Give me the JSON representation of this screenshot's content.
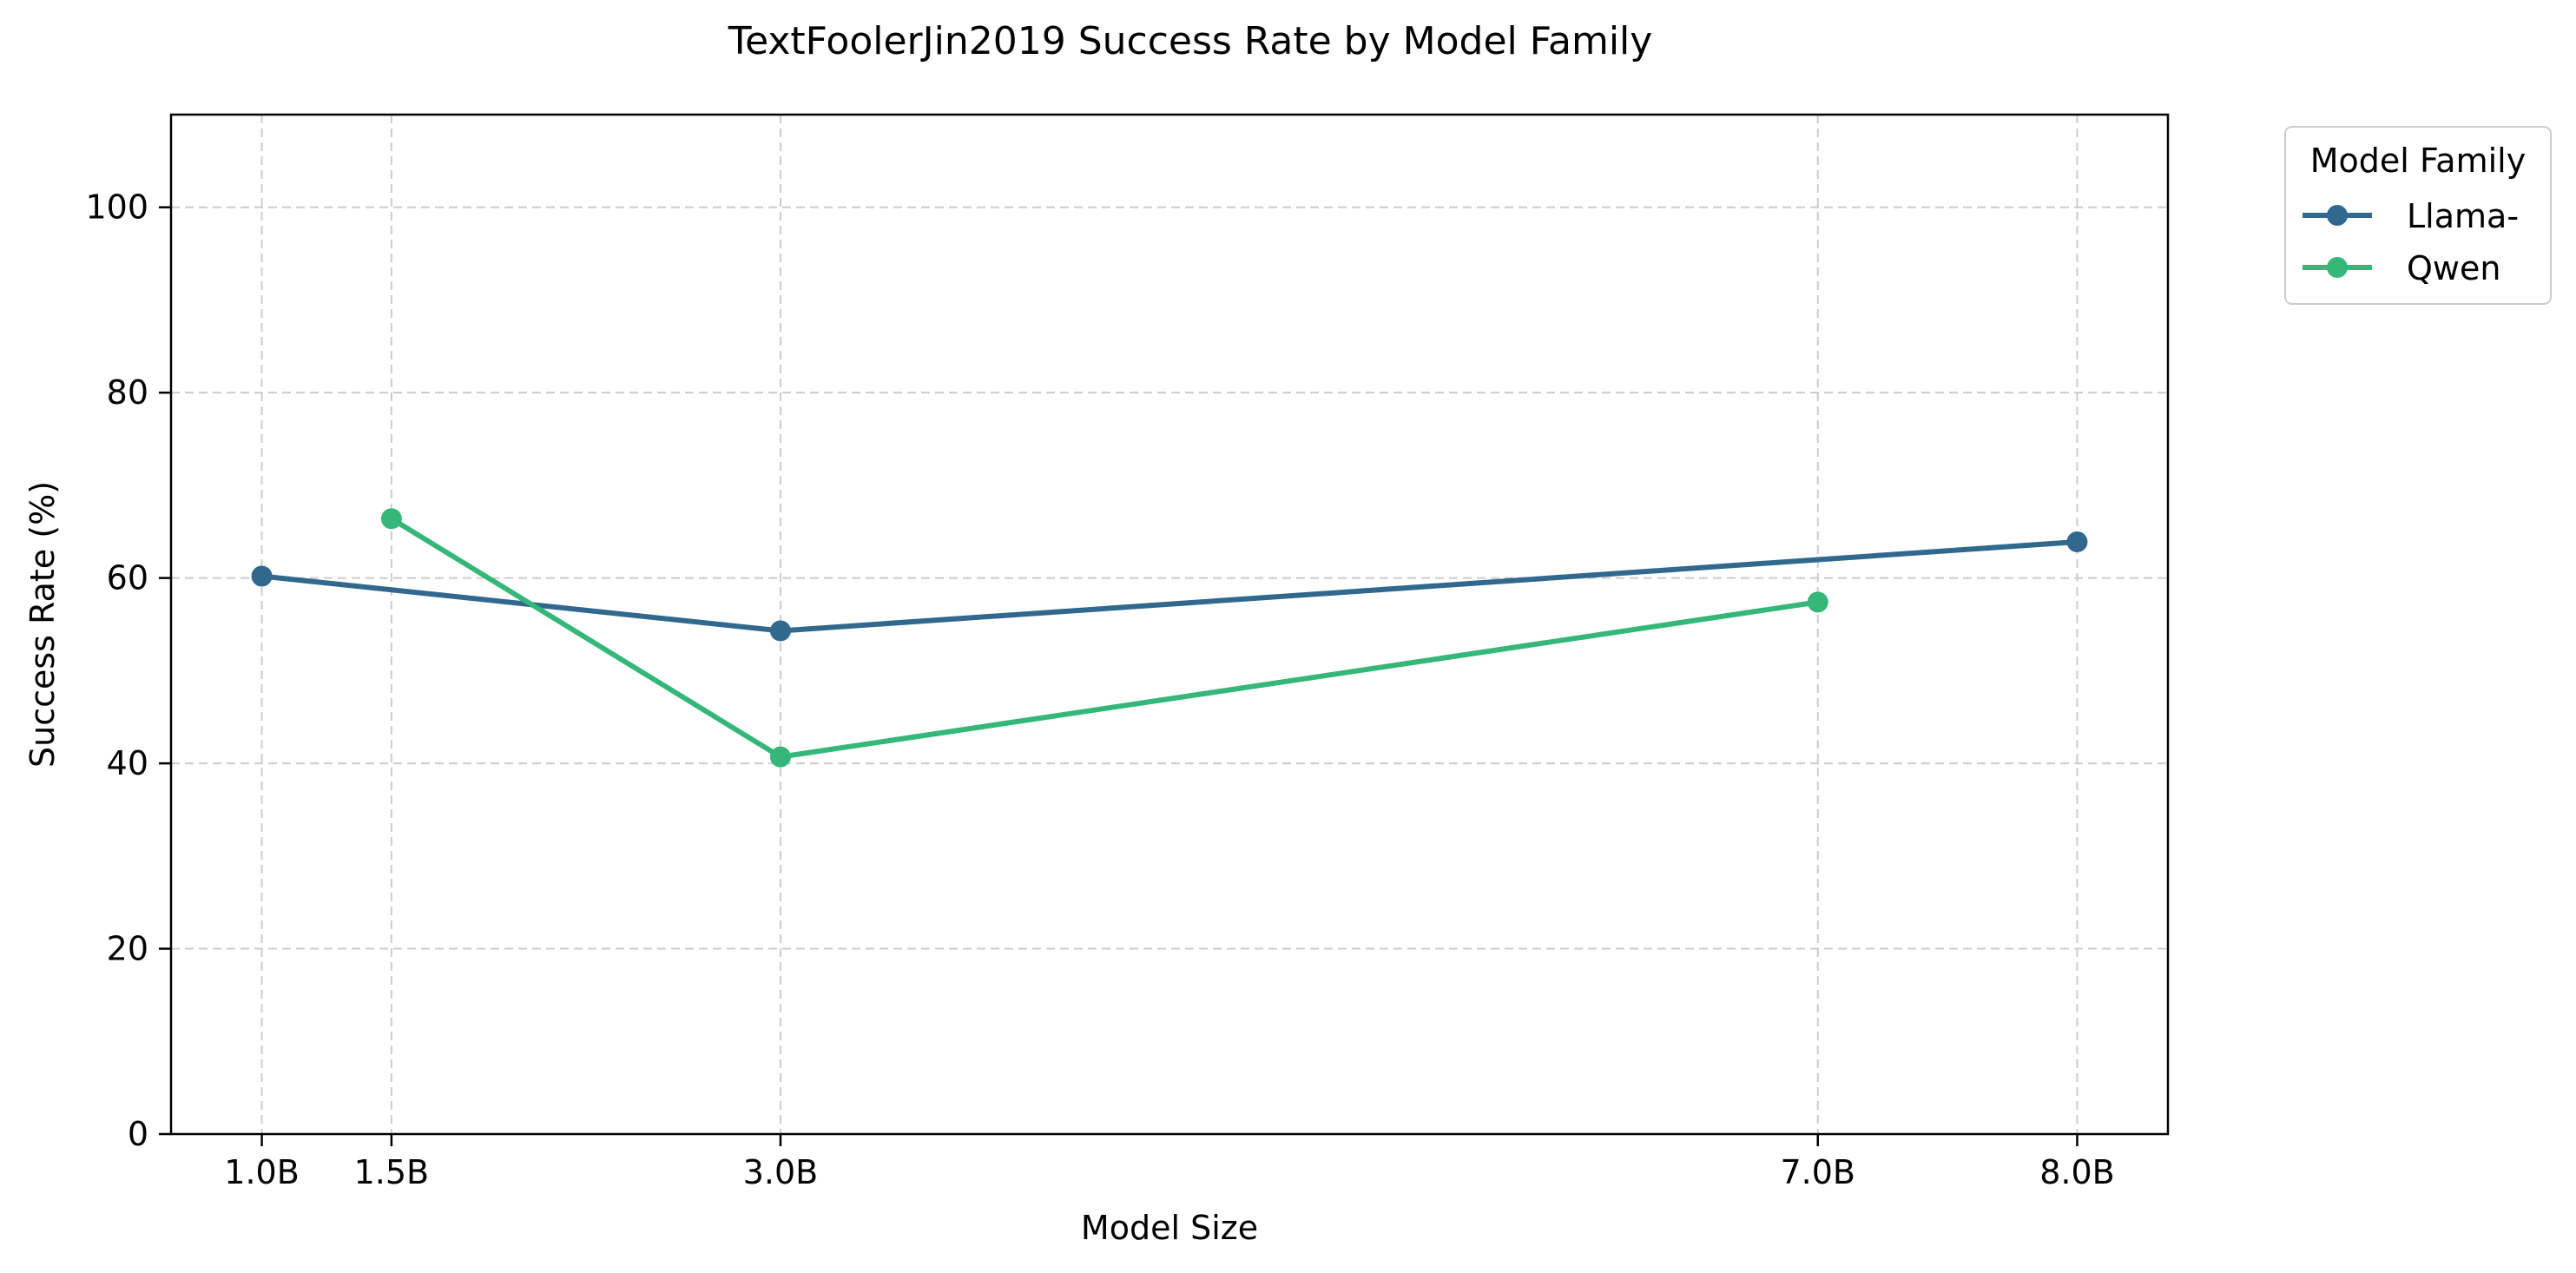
{
  "chart_data": {
    "type": "line",
    "title": "TextFoolerJin2019 Success Rate by Model Family",
    "xlabel": "Model Size",
    "ylabel": "Success Rate (%)",
    "x_ticks": [
      {
        "value": 1.0,
        "label": "1.0B"
      },
      {
        "value": 1.5,
        "label": "1.5B"
      },
      {
        "value": 3.0,
        "label": "3.0B"
      },
      {
        "value": 7.0,
        "label": "7.0B"
      },
      {
        "value": 8.0,
        "label": "8.0B"
      }
    ],
    "y_ticks": [
      0,
      20,
      40,
      60,
      80,
      100
    ],
    "xlim": [
      0.65,
      8.35
    ],
    "ylim": [
      0,
      110
    ],
    "grid": true,
    "legend": {
      "title": "Model Family",
      "placement": "outside-top-right"
    },
    "series": [
      {
        "name": "Llama-",
        "color": "#31688e",
        "x": [
          1.0,
          3.0,
          8.0
        ],
        "y": [
          60.2,
          54.3,
          63.9
        ]
      },
      {
        "name": "Qwen",
        "color": "#35b779",
        "x": [
          1.5,
          3.0,
          7.0
        ],
        "y": [
          66.4,
          40.7,
          57.4
        ]
      }
    ]
  }
}
